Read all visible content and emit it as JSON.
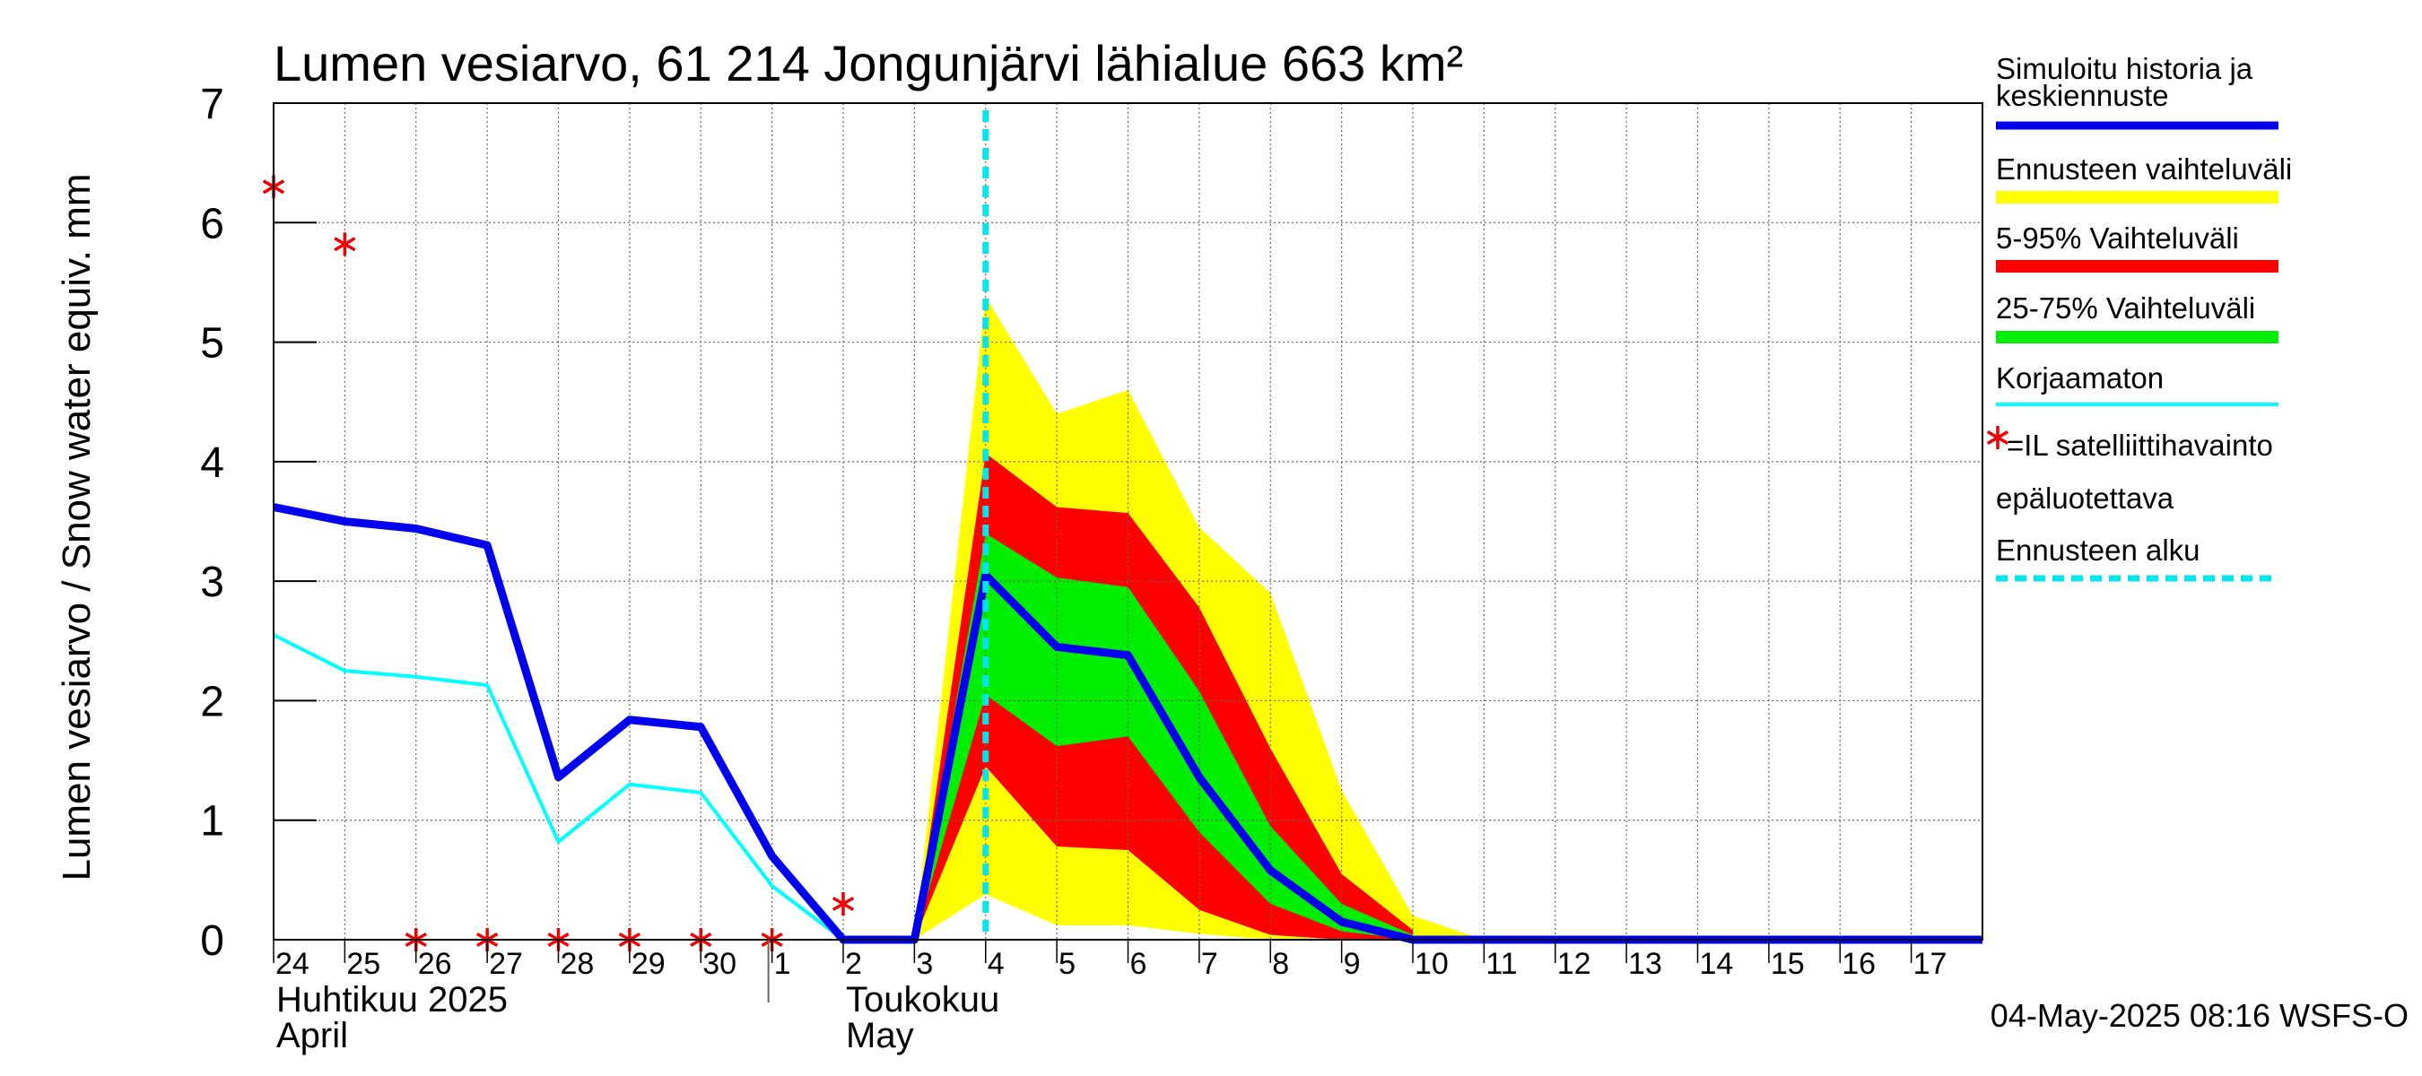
{
  "chart_data": {
    "type": "area",
    "title": "Lumen vesiarvo, 61 214 Jongunjärvi lähialue 663 km²",
    "ylabel": "Lumen vesiarvo / Snow water equiv.    mm",
    "ylim": [
      0,
      7
    ],
    "yticks": [
      0,
      1,
      2,
      3,
      4,
      5,
      6,
      7
    ],
    "xlim": [
      0,
      24
    ],
    "grid": true,
    "legend_position": "right",
    "day_labels": [
      "24",
      "25",
      "26",
      "27",
      "28",
      "29",
      "30",
      "1",
      "2",
      "3",
      "4",
      "5",
      "6",
      "7",
      "8",
      "9",
      "10",
      "11",
      "12",
      "13",
      "14",
      "15",
      "16",
      "17"
    ],
    "month_labels": [
      {
        "x": 0,
        "line1": "Huhtikuu  2025",
        "line2": "April"
      },
      {
        "x": 8,
        "line1": "Toukokuu",
        "line2": "May"
      }
    ],
    "forecast_start_x": 10,
    "colors": {
      "simulated": "#0000ee",
      "range_full": "#ffff00",
      "range_5_95": "#ff0000",
      "range_25_75": "#00ee00",
      "uncorrected": "#00ffff",
      "forecast_start": "#00e5ee",
      "satellite": "#ee0000",
      "grid": "#666666"
    },
    "series": [
      {
        "name": "Simuloitu historia ja keskiennuste",
        "role": "simulated",
        "x": [
          0,
          1,
          2,
          3,
          4,
          5,
          6,
          7,
          8,
          9,
          10,
          11,
          12,
          13,
          14,
          15,
          16,
          17,
          18,
          19,
          20,
          21,
          22,
          23,
          24
        ],
        "y": [
          3.62,
          3.5,
          3.44,
          3.3,
          1.36,
          1.84,
          1.78,
          0.7,
          0,
          0,
          3.05,
          2.45,
          2.38,
          1.36,
          0.58,
          0.15,
          0,
          0,
          0,
          0,
          0,
          0,
          0,
          0,
          0
        ]
      },
      {
        "name": "Korjaamaton",
        "role": "uncorrected",
        "x": [
          0,
          1,
          2,
          3,
          4,
          5,
          6,
          7,
          8
        ],
        "y": [
          2.55,
          2.25,
          2.2,
          2.13,
          0.82,
          1.3,
          1.23,
          0.45,
          0
        ]
      }
    ],
    "bands": [
      {
        "name": "Ennusteen vaihteluväli",
        "role": "range_full",
        "x": [
          9,
          10,
          11,
          12,
          13,
          14,
          15,
          16,
          17
        ],
        "upper": [
          0,
          5.38,
          4.4,
          4.6,
          3.45,
          2.9,
          1.25,
          0.2,
          0
        ],
        "lower": [
          0,
          0.38,
          0.12,
          0.12,
          0.05,
          0,
          0,
          0,
          0
        ]
      },
      {
        "name": "5-95% Vaihteluväli",
        "role": "range_5_95",
        "x": [
          9,
          10,
          11,
          12,
          13,
          14,
          15,
          16
        ],
        "upper": [
          0,
          4.07,
          3.62,
          3.57,
          2.78,
          1.6,
          0.55,
          0.08
        ],
        "lower": [
          0,
          1.45,
          0.78,
          0.75,
          0.25,
          0.04,
          0,
          0
        ]
      },
      {
        "name": "25-75% Vaihteluväli",
        "role": "range_25_75",
        "x": [
          9,
          10,
          11,
          12,
          13,
          14,
          15,
          16
        ],
        "upper": [
          0,
          3.4,
          3.03,
          2.95,
          2.08,
          0.95,
          0.3,
          0.04
        ],
        "lower": [
          0,
          2.05,
          1.62,
          1.7,
          0.9,
          0.3,
          0.07,
          0
        ]
      }
    ],
    "satellite_obs": {
      "x": [
        0,
        1,
        2,
        3,
        4,
        5,
        6,
        7,
        8
      ],
      "y": [
        6.3,
        5.82,
        0,
        0,
        0,
        0,
        0,
        0,
        0.3
      ]
    }
  },
  "legend": {
    "items": [
      {
        "label": "Simuloitu historia ja keskiennuste",
        "role": "simulated"
      },
      {
        "label": "Ennusteen vaihteluväli",
        "role": "range_full"
      },
      {
        "label": "5-95% Vaihteluväli",
        "role": "range_5_95"
      },
      {
        "label": "25-75% Vaihteluväli",
        "role": "range_25_75"
      },
      {
        "label": "Korjaamaton",
        "role": "uncorrected"
      },
      {
        "label": "=IL satelliittihavainto",
        "label2": "epäluotettava",
        "role": "satellite"
      },
      {
        "label": "Ennusteen alku",
        "role": "forecast_start"
      }
    ]
  },
  "footer": {
    "timestamp": "04-May-2025 08:16 WSFS-O"
  }
}
